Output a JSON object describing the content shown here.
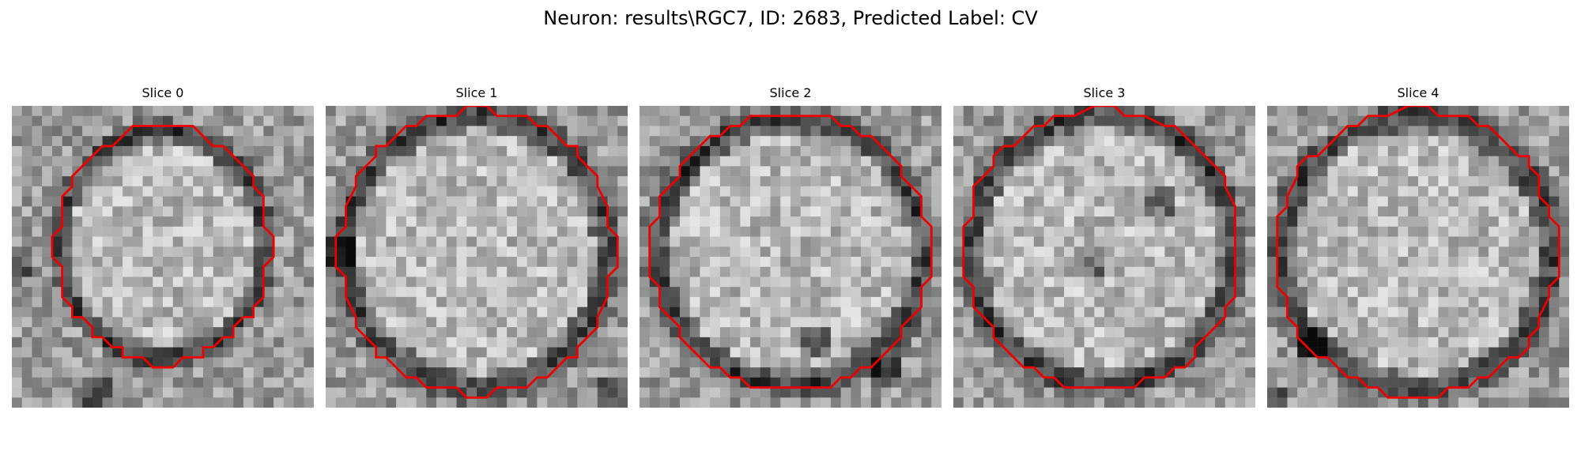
{
  "figure": {
    "title": "Neuron: results\\RGC7, ID: 2683, Predicted Label: CV"
  },
  "colors": {
    "contour": "#ee0000",
    "background": "#ffffff"
  },
  "slices": [
    {
      "label": "Slice 0"
    },
    {
      "label": "Slice 1"
    },
    {
      "label": "Slice 2"
    },
    {
      "label": "Slice 3"
    },
    {
      "label": "Slice 4"
    }
  ]
}
